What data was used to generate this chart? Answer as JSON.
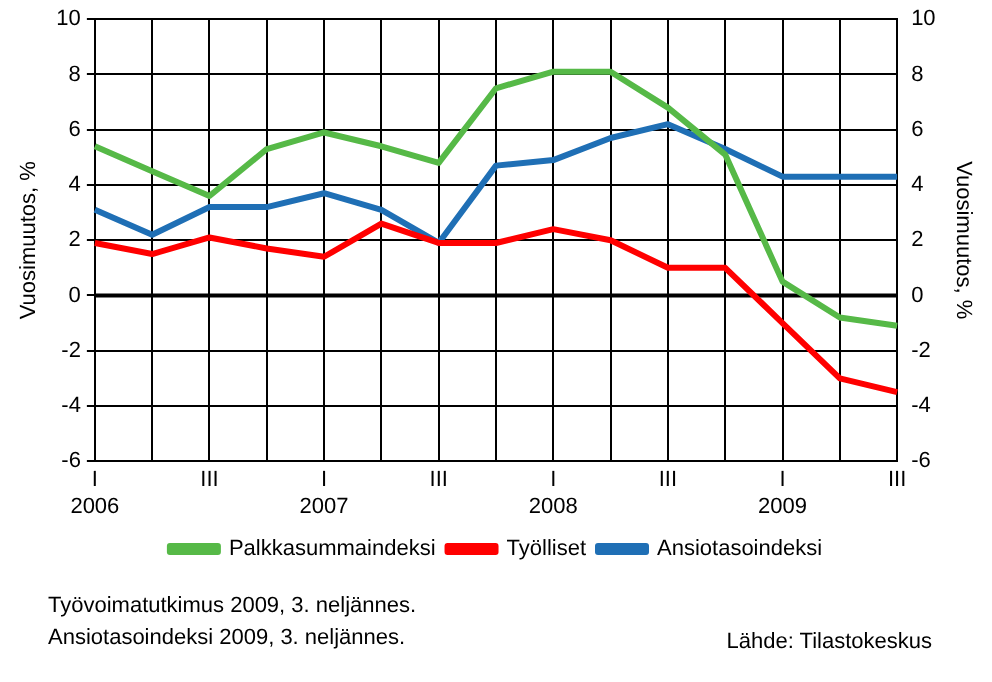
{
  "chart_data": {
    "type": "line",
    "ylabel": "Vuosimuutos, %",
    "y2label": "Vuosimuutos, %",
    "categories": [
      "I\n2006",
      null,
      "III",
      null,
      "I\n2007",
      null,
      "III",
      null,
      "I\n2008",
      null,
      "III",
      null,
      "I\n2009",
      null,
      "III"
    ],
    "series": [
      {
        "name": "Palkkasummaindeksi",
        "color": "#56b947",
        "values": [
          5.4,
          4.5,
          3.6,
          5.3,
          5.9,
          5.4,
          4.8,
          7.5,
          8.1,
          8.1,
          6.8,
          5.1,
          0.5,
          -0.8,
          -1.1
        ]
      },
      {
        "name": "Työlliset",
        "color": "#ff0000",
        "values": [
          1.9,
          1.5,
          2.1,
          1.7,
          1.4,
          2.6,
          1.9,
          1.9,
          2.4,
          2.0,
          1.0,
          1.0,
          -1.0,
          -3.0,
          -3.5
        ]
      },
      {
        "name": "Ansiotasoindeksi",
        "color": "#1f6fb5",
        "values": [
          3.1,
          2.2,
          3.2,
          3.2,
          3.7,
          3.1,
          1.9,
          4.7,
          4.9,
          5.7,
          6.2,
          5.3,
          4.3,
          4.3,
          4.3
        ]
      }
    ],
    "ylim": [
      -6,
      10
    ],
    "yticks": [
      -6,
      -4,
      -2,
      0,
      2,
      4,
      6,
      8,
      10
    ],
    "y2lim": [
      -6,
      10
    ],
    "y2ticks": [
      -6,
      -4,
      -2,
      0,
      2,
      4,
      6,
      8,
      10
    ],
    "ref_lines": [
      {
        "axis": "y",
        "value": 0,
        "color": "#000000"
      }
    ],
    "grid": true,
    "legend": "bottom",
    "marker": "none",
    "line_style": "solid",
    "annotations": [
      "Työvoimatutkimus 2009, 3. neljännes.",
      "Ansiotasoindeksi 2009, 3. neljännes.",
      "Lähde: Tilastokeskus"
    ]
  }
}
